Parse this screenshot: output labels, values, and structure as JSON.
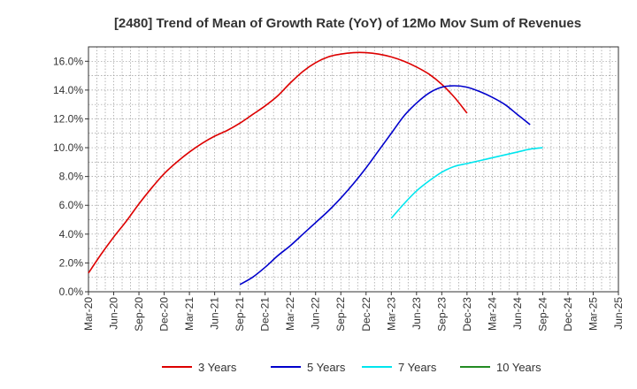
{
  "chart_data": {
    "type": "line",
    "title": "[2480]  Trend of Mean of Growth Rate (YoY) of 12Mo Mov Sum of Revenues",
    "xlabel": "",
    "ylabel": "",
    "ylim": [
      0,
      17
    ],
    "grid": true,
    "legend_position": "bottom",
    "y_ticks": [
      0,
      2,
      4,
      6,
      8,
      10,
      12,
      14,
      16
    ],
    "y_tick_labels": [
      "0.0%",
      "2.0%",
      "4.0%",
      "6.0%",
      "8.0%",
      "10.0%",
      "12.0%",
      "14.0%",
      "16.0%"
    ],
    "x_tick_labels": [
      "Mar-20",
      "Jun-20",
      "Sep-20",
      "Dec-20",
      "Mar-21",
      "Jun-21",
      "Sep-21",
      "Dec-21",
      "Mar-22",
      "Jun-22",
      "Sep-22",
      "Dec-22",
      "Mar-23",
      "Jun-23",
      "Sep-23",
      "Dec-23",
      "Mar-24",
      "Jun-24",
      "Sep-24",
      "Dec-24",
      "Mar-25",
      "Jun-25"
    ],
    "series": [
      {
        "name": "3 Years",
        "color": "#dd0000",
        "start_index": 0,
        "values": [
          1.3,
          2.6,
          3.8,
          4.9,
          6.1,
          7.2,
          8.2,
          9.0,
          9.7,
          10.3,
          10.8,
          11.2,
          11.7,
          12.3,
          12.9,
          13.6,
          14.5,
          15.3,
          15.9,
          16.3,
          16.5,
          16.6,
          16.6,
          16.5,
          16.3,
          16.0,
          15.6,
          15.1,
          14.4,
          13.5,
          12.4
        ]
      },
      {
        "name": "5 Years",
        "color": "#0000cc",
        "start_index": 12,
        "values": [
          0.5,
          1.0,
          1.7,
          2.5,
          3.2,
          4.0,
          4.8,
          5.6,
          6.5,
          7.5,
          8.6,
          9.8,
          11.0,
          12.2,
          13.1,
          13.8,
          14.2,
          14.3,
          14.2,
          13.9,
          13.5,
          13.0,
          12.3,
          11.6
        ]
      },
      {
        "name": "7 Years",
        "color": "#00e5ee",
        "start_index": 24,
        "values": [
          5.1,
          6.1,
          7.0,
          7.7,
          8.3,
          8.7,
          8.9,
          9.1,
          9.3,
          9.5,
          9.7,
          9.9,
          10.0
        ]
      },
      {
        "name": "10 Years",
        "color": "#228b22",
        "start_index": 0,
        "values": []
      }
    ],
    "x_step_months": 3,
    "series_step_months": 1.5
  }
}
